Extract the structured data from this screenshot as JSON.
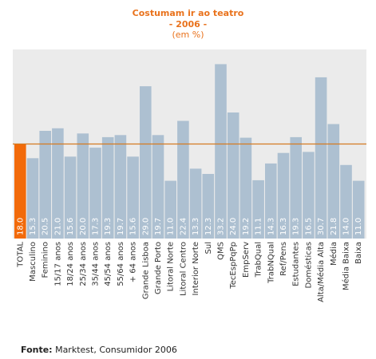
{
  "chart_data": {
    "type": "bar",
    "title": "Costumam ir ao teatro",
    "subtitle": "- 2006 -",
    "unit": "(em %)",
    "categories": [
      "TOTAL",
      "Masculino",
      "Feminino",
      "15/17 anos",
      "18/24 anos",
      "25/34 anos",
      "35/44 anos",
      "45/54 anos",
      "55/64 anos",
      "+ 64 anos",
      "Grande Lisboa",
      "Grande Porto",
      "Litoral Norte",
      "Litoral Centro",
      "Interior Norte",
      "Sul",
      "QMS",
      "TecEspPqPp",
      "EmpServ",
      "TrabQual",
      "TrabNQual",
      "Ref/Pens",
      "Estudantes",
      "Domésticas",
      "Alta/Média Alta",
      "Média",
      "Média Baixa",
      "Baixa"
    ],
    "values": [
      18.0,
      15.3,
      20.5,
      21.0,
      15.6,
      20.0,
      17.3,
      19.3,
      19.7,
      15.6,
      29.0,
      19.7,
      11.0,
      22.4,
      13.3,
      12.3,
      33.2,
      24.0,
      19.2,
      11.1,
      14.3,
      16.3,
      19.3,
      16.5,
      30.7,
      21.8,
      14.0,
      11.0
    ],
    "value_labels": [
      "18.0",
      "15.3",
      "20.5",
      "21.0",
      "15.6",
      "20.0",
      "17.3",
      "19.3",
      "19.7",
      "15.6",
      "29.0",
      "19.7",
      "11.0",
      "22.4",
      "13.3",
      "12.3",
      "33.2",
      "24.0",
      "19.2",
      "11.1",
      "14.3",
      "16.3",
      "19.3",
      "16.5",
      "30.7",
      "21.8",
      "14.0",
      "11.0"
    ],
    "reference_value": 18.0,
    "ylim": [
      0,
      36
    ],
    "colors": {
      "highlight": "#f26a0a",
      "bar": "#adc0d1",
      "plot_bg": "#ebebeb",
      "reference_line": "#d57a20",
      "title": "#e9721c"
    }
  },
  "footer": {
    "label": "Fonte:",
    "text": "Marktest, Consumidor 2006"
  }
}
